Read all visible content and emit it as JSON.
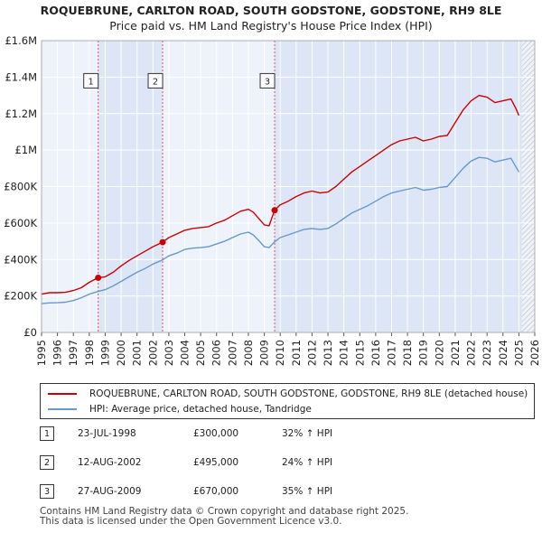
{
  "chart_data": {
    "type": "line",
    "title": "ROQUEBRUNE, CARLTON ROAD, SOUTH GODSTONE, GODSTONE, RH9 8LE",
    "subtitle": "Price paid vs. HM Land Registry's House Price Index (HPI)",
    "xlim": [
      1995,
      2026
    ],
    "ylim": [
      0,
      1600000
    ],
    "x_ticks": [
      "1995",
      "1996",
      "1997",
      "1998",
      "1999",
      "2000",
      "2001",
      "2002",
      "2003",
      "2004",
      "2005",
      "2006",
      "2007",
      "2008",
      "2009",
      "2010",
      "2011",
      "2012",
      "2013",
      "2014",
      "2015",
      "2016",
      "2017",
      "2018",
      "2019",
      "2020",
      "2021",
      "2022",
      "2023",
      "2024",
      "2025",
      "2026"
    ],
    "y_ticks": [
      {
        "value": 0,
        "label": "£0"
      },
      {
        "value": 200000,
        "label": "£200K"
      },
      {
        "value": 400000,
        "label": "£400K"
      },
      {
        "value": 600000,
        "label": "£600K"
      },
      {
        "value": 800000,
        "label": "£800K"
      },
      {
        "value": 1000000,
        "label": "£1M"
      },
      {
        "value": 1200000,
        "label": "£1.2M"
      },
      {
        "value": 1400000,
        "label": "£1.4M"
      },
      {
        "value": 1600000,
        "label": "£1.6M"
      }
    ],
    "shaded_periods": [
      [
        1998.56,
        2002.61
      ],
      [
        2009.65,
        2025.2
      ]
    ],
    "hatched_after": 2025.2,
    "series": [
      {
        "name": "ROQUEBRUNE, CARLTON ROAD, SOUTH GODSTONE, GODSTONE, RH9 8LE (detached house)",
        "color": "#cc0000",
        "points": [
          [
            1995.0,
            210000
          ],
          [
            1995.5,
            218000
          ],
          [
            1996.0,
            218000
          ],
          [
            1996.5,
            220000
          ],
          [
            1997.0,
            230000
          ],
          [
            1997.5,
            245000
          ],
          [
            1998.0,
            275000
          ],
          [
            1998.56,
            300000
          ],
          [
            1999.0,
            305000
          ],
          [
            1999.5,
            330000
          ],
          [
            2000.0,
            365000
          ],
          [
            2000.5,
            395000
          ],
          [
            2001.0,
            420000
          ],
          [
            2001.5,
            445000
          ],
          [
            2002.0,
            470000
          ],
          [
            2002.61,
            495000
          ],
          [
            2003.0,
            520000
          ],
          [
            2003.5,
            540000
          ],
          [
            2004.0,
            560000
          ],
          [
            2004.5,
            570000
          ],
          [
            2005.0,
            575000
          ],
          [
            2005.5,
            580000
          ],
          [
            2006.0,
            600000
          ],
          [
            2006.5,
            615000
          ],
          [
            2007.0,
            640000
          ],
          [
            2007.5,
            665000
          ],
          [
            2008.0,
            675000
          ],
          [
            2008.3,
            660000
          ],
          [
            2008.7,
            620000
          ],
          [
            2009.0,
            590000
          ],
          [
            2009.3,
            585000
          ],
          [
            2009.65,
            670000
          ],
          [
            2010.0,
            700000
          ],
          [
            2010.5,
            720000
          ],
          [
            2011.0,
            745000
          ],
          [
            2011.5,
            765000
          ],
          [
            2012.0,
            775000
          ],
          [
            2012.5,
            765000
          ],
          [
            2013.0,
            770000
          ],
          [
            2013.5,
            800000
          ],
          [
            2014.0,
            840000
          ],
          [
            2014.5,
            880000
          ],
          [
            2015.0,
            910000
          ],
          [
            2015.5,
            940000
          ],
          [
            2016.0,
            970000
          ],
          [
            2016.5,
            1000000
          ],
          [
            2017.0,
            1030000
          ],
          [
            2017.5,
            1050000
          ],
          [
            2018.0,
            1060000
          ],
          [
            2018.5,
            1070000
          ],
          [
            2019.0,
            1050000
          ],
          [
            2019.5,
            1060000
          ],
          [
            2020.0,
            1075000
          ],
          [
            2020.5,
            1080000
          ],
          [
            2021.0,
            1150000
          ],
          [
            2021.5,
            1220000
          ],
          [
            2022.0,
            1270000
          ],
          [
            2022.5,
            1300000
          ],
          [
            2023.0,
            1290000
          ],
          [
            2023.5,
            1260000
          ],
          [
            2024.0,
            1270000
          ],
          [
            2024.5,
            1280000
          ],
          [
            2024.8,
            1230000
          ],
          [
            2025.0,
            1190000
          ]
        ]
      },
      {
        "name": "HPI: Average price, detached house, Tandridge",
        "color": "#6699cc",
        "points": [
          [
            1995.0,
            158000
          ],
          [
            1995.5,
            162000
          ],
          [
            1996.0,
            163000
          ],
          [
            1996.5,
            166000
          ],
          [
            1997.0,
            175000
          ],
          [
            1997.5,
            190000
          ],
          [
            1998.0,
            210000
          ],
          [
            1998.56,
            225000
          ],
          [
            1999.0,
            235000
          ],
          [
            1999.5,
            255000
          ],
          [
            2000.0,
            280000
          ],
          [
            2000.5,
            305000
          ],
          [
            2001.0,
            330000
          ],
          [
            2001.5,
            350000
          ],
          [
            2002.0,
            375000
          ],
          [
            2002.61,
            398000
          ],
          [
            2003.0,
            420000
          ],
          [
            2003.5,
            435000
          ],
          [
            2004.0,
            455000
          ],
          [
            2004.5,
            462000
          ],
          [
            2005.0,
            465000
          ],
          [
            2005.5,
            470000
          ],
          [
            2006.0,
            485000
          ],
          [
            2006.5,
            500000
          ],
          [
            2007.0,
            520000
          ],
          [
            2007.5,
            540000
          ],
          [
            2008.0,
            550000
          ],
          [
            2008.3,
            535000
          ],
          [
            2008.7,
            500000
          ],
          [
            2009.0,
            470000
          ],
          [
            2009.3,
            465000
          ],
          [
            2009.65,
            497000
          ],
          [
            2010.0,
            520000
          ],
          [
            2010.5,
            535000
          ],
          [
            2011.0,
            550000
          ],
          [
            2011.5,
            565000
          ],
          [
            2012.0,
            570000
          ],
          [
            2012.5,
            565000
          ],
          [
            2013.0,
            570000
          ],
          [
            2013.5,
            595000
          ],
          [
            2014.0,
            625000
          ],
          [
            2014.5,
            655000
          ],
          [
            2015.0,
            675000
          ],
          [
            2015.5,
            695000
          ],
          [
            2016.0,
            720000
          ],
          [
            2016.5,
            745000
          ],
          [
            2017.0,
            765000
          ],
          [
            2017.5,
            775000
          ],
          [
            2018.0,
            785000
          ],
          [
            2018.5,
            795000
          ],
          [
            2019.0,
            780000
          ],
          [
            2019.5,
            785000
          ],
          [
            2020.0,
            795000
          ],
          [
            2020.5,
            800000
          ],
          [
            2021.0,
            850000
          ],
          [
            2021.5,
            900000
          ],
          [
            2022.0,
            940000
          ],
          [
            2022.5,
            960000
          ],
          [
            2023.0,
            955000
          ],
          [
            2023.5,
            935000
          ],
          [
            2024.0,
            945000
          ],
          [
            2024.5,
            955000
          ],
          [
            2024.8,
            910000
          ],
          [
            2025.0,
            880000
          ]
        ]
      }
    ],
    "sales": [
      {
        "label": "1",
        "x": 1998.56,
        "y": 300000,
        "date": "23-JUL-1998",
        "price": "£300,000",
        "hpi": "32% ↑ HPI"
      },
      {
        "label": "2",
        "x": 2002.61,
        "y": 495000,
        "date": "12-AUG-2002",
        "price": "£495,000",
        "hpi": "24% ↑ HPI"
      },
      {
        "label": "3",
        "x": 2009.65,
        "y": 670000,
        "date": "27-AUG-2009",
        "price": "£670,000",
        "hpi": "35% ↑ HPI"
      }
    ],
    "sale_label_y": 1380000
  },
  "legend": {
    "red_label": "ROQUEBRUNE, CARLTON ROAD, SOUTH GODSTONE, GODSTONE, RH9 8LE (detached house)",
    "blue_label": "HPI: Average price, detached house, Tandridge",
    "red_color": "#cc0000",
    "blue_color": "#6699cc"
  },
  "footer": {
    "line1": "Contains HM Land Registry data © Crown copyright and database right 2025.",
    "line2": "This data is licensed under the Open Government Licence v3.0."
  }
}
